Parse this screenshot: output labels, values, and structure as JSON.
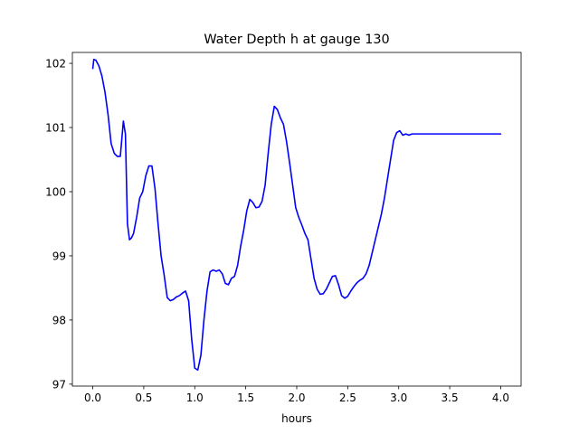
{
  "chart_data": {
    "type": "line",
    "title": "Water Depth h at gauge 130",
    "xlabel": "hours",
    "ylabel": "",
    "xlim": [
      -0.2,
      4.2
    ],
    "ylim": [
      96.97,
      102.17
    ],
    "xticks": [
      0.0,
      0.5,
      1.0,
      1.5,
      2.0,
      2.5,
      3.0,
      3.5,
      4.0
    ],
    "xtick_labels": [
      "0.0",
      "0.5",
      "1.0",
      "1.5",
      "2.0",
      "2.5",
      "3.0",
      "3.5",
      "4.0"
    ],
    "yticks": [
      97,
      98,
      99,
      100,
      101,
      102
    ],
    "ytick_labels": [
      "97",
      "98",
      "99",
      "100",
      "101",
      "102"
    ],
    "grid": false,
    "series": [
      {
        "color": "#0000ff",
        "x": [
          0.0,
          0.01,
          0.03,
          0.06,
          0.09,
          0.12,
          0.15,
          0.18,
          0.21,
          0.24,
          0.27,
          0.3,
          0.32,
          0.34,
          0.36,
          0.38,
          0.4,
          0.43,
          0.46,
          0.49,
          0.52,
          0.55,
          0.58,
          0.61,
          0.64,
          0.67,
          0.7,
          0.73,
          0.76,
          0.79,
          0.82,
          0.85,
          0.88,
          0.91,
          0.94,
          0.97,
          1.0,
          1.03,
          1.06,
          1.09,
          1.12,
          1.15,
          1.18,
          1.21,
          1.24,
          1.27,
          1.3,
          1.33,
          1.36,
          1.39,
          1.42,
          1.45,
          1.48,
          1.51,
          1.54,
          1.57,
          1.6,
          1.63,
          1.66,
          1.69,
          1.72,
          1.75,
          1.78,
          1.81,
          1.84,
          1.87,
          1.9,
          1.93,
          1.96,
          1.99,
          2.02,
          2.05,
          2.08,
          2.11,
          2.14,
          2.17,
          2.2,
          2.23,
          2.26,
          2.29,
          2.32,
          2.35,
          2.38,
          2.41,
          2.44,
          2.47,
          2.5,
          2.53,
          2.56,
          2.59,
          2.62,
          2.65,
          2.68,
          2.71,
          2.74,
          2.77,
          2.8,
          2.83,
          2.86,
          2.89,
          2.92,
          2.95,
          2.98,
          3.01,
          3.04,
          3.07,
          3.1,
          3.13,
          3.16,
          3.19,
          3.22,
          3.25,
          3.28,
          3.31,
          3.34,
          3.37,
          3.4,
          3.43,
          3.46,
          3.49,
          3.52,
          3.55,
          3.58,
          3.61,
          3.64,
          3.67,
          3.7,
          3.73,
          3.76,
          3.79,
          3.82,
          3.85,
          3.88,
          3.91,
          3.94,
          3.97,
          4.0
        ],
        "y": [
          101.92,
          102.06,
          102.05,
          101.96,
          101.8,
          101.55,
          101.2,
          100.75,
          100.6,
          100.55,
          100.55,
          101.1,
          100.9,
          99.5,
          99.25,
          99.28,
          99.35,
          99.6,
          99.9,
          100.0,
          100.25,
          100.4,
          100.4,
          100.05,
          99.5,
          99.0,
          98.7,
          98.35,
          98.3,
          98.32,
          98.36,
          98.38,
          98.42,
          98.45,
          98.3,
          97.7,
          97.25,
          97.22,
          97.45,
          98.0,
          98.45,
          98.75,
          98.78,
          98.76,
          98.78,
          98.72,
          98.57,
          98.55,
          98.65,
          98.68,
          98.85,
          99.15,
          99.4,
          99.7,
          99.88,
          99.83,
          99.75,
          99.76,
          99.85,
          100.1,
          100.6,
          101.05,
          101.33,
          101.28,
          101.15,
          101.05,
          100.78,
          100.45,
          100.1,
          99.75,
          99.6,
          99.48,
          99.35,
          99.25,
          98.95,
          98.65,
          98.48,
          98.4,
          98.41,
          98.48,
          98.58,
          98.68,
          98.69,
          98.55,
          98.38,
          98.34,
          98.37,
          98.45,
          98.52,
          98.58,
          98.62,
          98.65,
          98.72,
          98.85,
          99.05,
          99.25,
          99.45,
          99.65,
          99.9,
          100.2,
          100.5,
          100.8,
          100.92,
          100.95,
          100.88,
          100.9,
          100.88,
          100.9,
          100.9,
          100.9,
          100.9,
          100.9,
          100.9,
          100.9,
          100.9,
          100.9,
          100.9,
          100.9,
          100.9,
          100.9,
          100.9,
          100.9,
          100.9,
          100.9,
          100.9,
          100.9,
          100.9,
          100.9,
          100.9,
          100.9,
          100.9,
          100.9,
          100.9,
          100.9,
          100.9,
          100.9,
          100.9
        ]
      }
    ]
  }
}
